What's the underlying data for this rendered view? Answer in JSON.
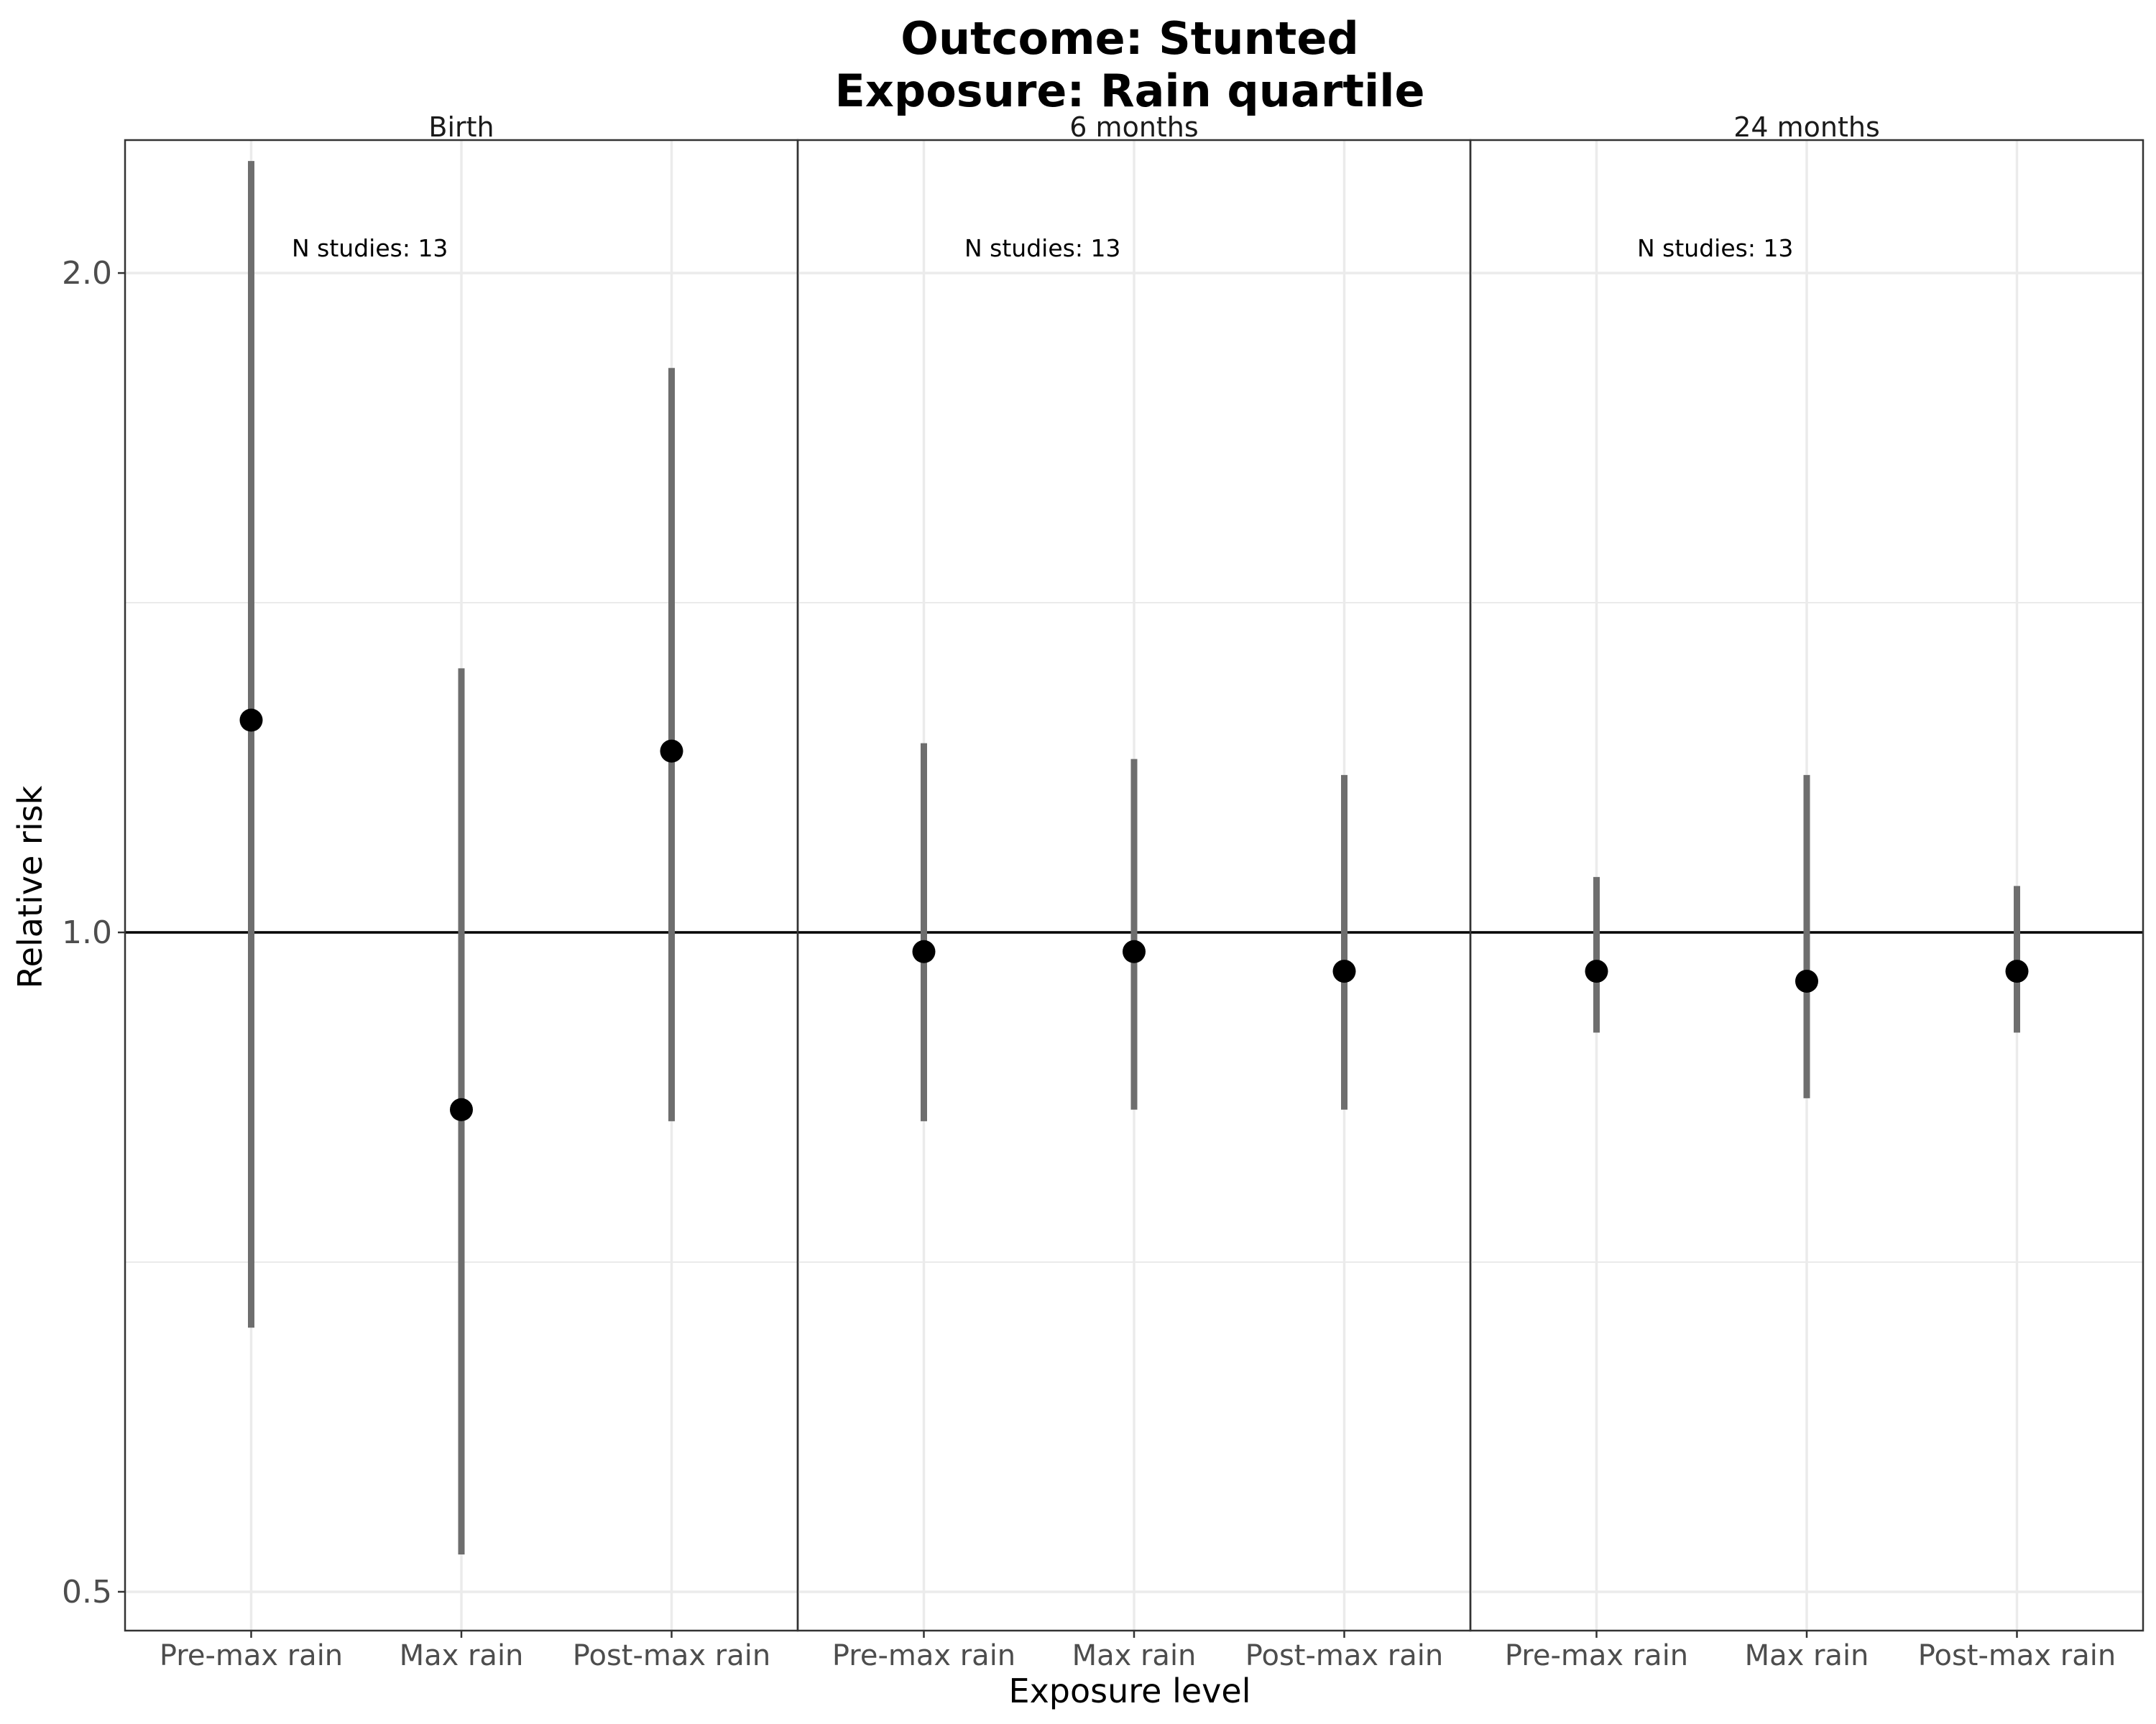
{
  "chart_data": {
    "type": "scatter",
    "title": "Outcome: Stunted",
    "subtitle": "Exposure: Rain quartile",
    "xlabel": "Exposure level",
    "ylabel": "Relative risk",
    "y_scale": "log",
    "ylim": [
      0.48,
      2.3
    ],
    "yticks": [
      0.5,
      1.0,
      2.0
    ],
    "ytick_labels": [
      "0.5",
      "1.0",
      "2.0"
    ],
    "reference_line": 1.0,
    "grid": true,
    "categories": [
      "Pre-max rain",
      "Max rain",
      "Post-max rain"
    ],
    "panels": [
      {
        "label": "Birth",
        "annotation": "N studies: 13",
        "points": [
          {
            "category": "Pre-max rain",
            "estimate": 1.25,
            "ci_lower": 0.66,
            "ci_upper": 2.25
          },
          {
            "category": "Max rain",
            "estimate": 0.83,
            "ci_lower": 0.52,
            "ci_upper": 1.32
          },
          {
            "category": "Post-max rain",
            "estimate": 1.21,
            "ci_lower": 0.82,
            "ci_upper": 1.81
          }
        ]
      },
      {
        "label": "6 months",
        "annotation": "N studies: 13",
        "points": [
          {
            "category": "Pre-max rain",
            "estimate": 0.98,
            "ci_lower": 0.82,
            "ci_upper": 1.22
          },
          {
            "category": "Max rain",
            "estimate": 0.98,
            "ci_lower": 0.83,
            "ci_upper": 1.2
          },
          {
            "category": "Post-max rain",
            "estimate": 0.96,
            "ci_lower": 0.83,
            "ci_upper": 1.18
          }
        ]
      },
      {
        "label": "24 months",
        "annotation": "N studies: 13",
        "points": [
          {
            "category": "Pre-max rain",
            "estimate": 0.96,
            "ci_lower": 0.9,
            "ci_upper": 1.06
          },
          {
            "category": "Max rain",
            "estimate": 0.95,
            "ci_lower": 0.84,
            "ci_upper": 1.18
          },
          {
            "category": "Post-max rain",
            "estimate": 0.96,
            "ci_lower": 0.9,
            "ci_upper": 1.05
          }
        ]
      }
    ],
    "colors": {
      "point": "#000000",
      "ci": "#6e6e6e",
      "grid": "#ebebeb",
      "panel_border": "#333333"
    }
  }
}
